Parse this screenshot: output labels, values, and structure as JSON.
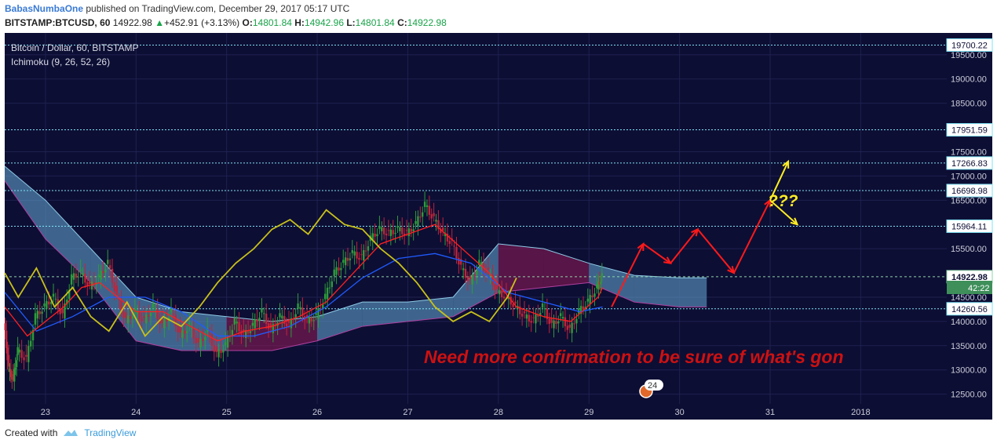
{
  "header": {
    "author": "BabasNumbaOne",
    "published": "published on TradingView.com, December 29, 2017 05:17 UTC",
    "symbol": "BITSTAMP:BTCUSD, 60",
    "last": "14922.98",
    "change_arrow": "▲",
    "change": "+452.91 (+3.13%)",
    "o_label": "O:",
    "o": "14801.84",
    "h_label": "H:",
    "h": "14942.96",
    "l_label": "L:",
    "l": "14801.84",
    "c_label": "C:",
    "c": "14922.98"
  },
  "legend": {
    "title": "Bitcoin / Dollar, 60, BITSTAMP",
    "indicator": "Ichimoku (9, 26, 52, 26)"
  },
  "annotation": {
    "text": "Need more confirmation to be sure of what's gon",
    "question": "???"
  },
  "countdown": "42:22",
  "event_count": "24",
  "footer": {
    "created": "Created with",
    "brand": "TradingView"
  },
  "colors": {
    "background": "#0d0e34",
    "grid": "#1f2150",
    "level": "#7fe3f5",
    "last_price": "#8fd3a8",
    "tenkan": "#ff2020",
    "kijun": "#1f5cff",
    "chikou": "#c8c11a",
    "cloud_bull": "#5f9fc9",
    "cloud_bear": "#8a1a55",
    "up_candle": "#2e9b3a",
    "down_candle": "#c0243a",
    "projection": "#ff1a1a",
    "projection_alt": "#ffee22",
    "annotation_text": "#cc1111"
  },
  "chart_data": {
    "type": "candlestick",
    "title": "Bitcoin / Dollar, 60, BITSTAMP",
    "x_ticks": [
      "23",
      "24",
      "25",
      "26",
      "27",
      "28",
      "29",
      "30",
      "31",
      "2018"
    ],
    "y_ticks": [
      "19500.00",
      "19000.00",
      "18500.00",
      "17500.00",
      "17000.00",
      "16500.00",
      "15500.00",
      "14500.00",
      "14000.00",
      "13500.00",
      "13000.00",
      "12500.00"
    ],
    "ylim": [
      12300,
      19950
    ],
    "levels": [
      19700.22,
      17951.59,
      17266.83,
      16698.98,
      15964.11,
      14260.56
    ],
    "level_labels": [
      "19700.22",
      "17951.59",
      "17266.83",
      "16698.98",
      "15964.11",
      "14260.56"
    ],
    "last_price": 14922.98,
    "last_price_label": "14922.98",
    "price_path": [
      [
        22.55,
        14000
      ],
      [
        22.6,
        13000
      ],
      [
        22.65,
        12800
      ],
      [
        22.7,
        13400
      ],
      [
        22.8,
        13200
      ],
      [
        22.9,
        14100
      ],
      [
        23.0,
        14300
      ],
      [
        23.1,
        14500
      ],
      [
        23.2,
        14100
      ],
      [
        23.3,
        14900
      ],
      [
        23.4,
        15000
      ],
      [
        23.5,
        14700
      ],
      [
        23.6,
        14900
      ],
      [
        23.7,
        15200
      ],
      [
        23.8,
        14500
      ],
      [
        23.9,
        14000
      ],
      [
        24.0,
        14200
      ],
      [
        24.1,
        14000
      ],
      [
        24.2,
        14300
      ],
      [
        24.3,
        13900
      ],
      [
        24.4,
        14200
      ],
      [
        24.5,
        13700
      ],
      [
        24.6,
        13900
      ],
      [
        24.7,
        13500
      ],
      [
        24.8,
        13800
      ],
      [
        24.9,
        13300
      ],
      [
        25.0,
        13500
      ],
      [
        25.1,
        14000
      ],
      [
        25.2,
        13700
      ],
      [
        25.3,
        13900
      ],
      [
        25.4,
        14200
      ],
      [
        25.5,
        13800
      ],
      [
        25.6,
        14100
      ],
      [
        25.7,
        13900
      ],
      [
        25.8,
        14300
      ],
      [
        25.9,
        14000
      ],
      [
        26.0,
        14100
      ],
      [
        26.1,
        14500
      ],
      [
        26.2,
        15000
      ],
      [
        26.3,
        15200
      ],
      [
        26.4,
        15400
      ],
      [
        26.5,
        15300
      ],
      [
        26.6,
        15700
      ],
      [
        26.7,
        15900
      ],
      [
        26.8,
        15800
      ],
      [
        26.9,
        15900
      ],
      [
        27.0,
        15800
      ],
      [
        27.1,
        16000
      ],
      [
        27.2,
        16400
      ],
      [
        27.3,
        16100
      ],
      [
        27.4,
        15800
      ],
      [
        27.5,
        15600
      ],
      [
        27.6,
        15100
      ],
      [
        27.7,
        14800
      ],
      [
        27.8,
        15200
      ],
      [
        27.9,
        15000
      ],
      [
        28.0,
        14600
      ],
      [
        28.1,
        14500
      ],
      [
        28.2,
        14300
      ],
      [
        28.3,
        14100
      ],
      [
        28.4,
        14000
      ],
      [
        28.5,
        14300
      ],
      [
        28.6,
        13900
      ],
      [
        28.7,
        14100
      ],
      [
        28.8,
        13800
      ],
      [
        28.9,
        14200
      ],
      [
        29.0,
        14400
      ],
      [
        29.1,
        14700
      ],
      [
        29.15,
        14922.98
      ]
    ],
    "tenkan": [
      [
        22.55,
        14300
      ],
      [
        22.8,
        13700
      ],
      [
        23.0,
        14000
      ],
      [
        23.2,
        14300
      ],
      [
        23.4,
        14700
      ],
      [
        23.6,
        14800
      ],
      [
        23.8,
        14500
      ],
      [
        24.0,
        14200
      ],
      [
        24.3,
        14200
      ],
      [
        24.6,
        13900
      ],
      [
        24.9,
        13600
      ],
      [
        25.2,
        13800
      ],
      [
        25.5,
        13900
      ],
      [
        25.8,
        14100
      ],
      [
        26.1,
        14400
      ],
      [
        26.4,
        15000
      ],
      [
        26.7,
        15600
      ],
      [
        27.0,
        15800
      ],
      [
        27.3,
        16000
      ],
      [
        27.6,
        15500
      ],
      [
        27.9,
        15000
      ],
      [
        28.2,
        14300
      ],
      [
        28.5,
        14100
      ],
      [
        28.8,
        14000
      ],
      [
        29.1,
        14500
      ],
      [
        29.15,
        14700
      ]
    ],
    "kijun": [
      [
        22.55,
        14600
      ],
      [
        22.9,
        13800
      ],
      [
        23.3,
        14100
      ],
      [
        23.7,
        14500
      ],
      [
        24.1,
        14500
      ],
      [
        24.5,
        14200
      ],
      [
        24.9,
        13700
      ],
      [
        25.3,
        13700
      ],
      [
        25.7,
        13900
      ],
      [
        26.1,
        14300
      ],
      [
        26.5,
        14900
      ],
      [
        26.9,
        15300
      ],
      [
        27.3,
        15400
      ],
      [
        27.7,
        15200
      ],
      [
        28.1,
        14600
      ],
      [
        28.5,
        14400
      ],
      [
        28.9,
        14200
      ],
      [
        29.15,
        14300
      ]
    ],
    "chikou": [
      [
        22.55,
        15000
      ],
      [
        22.7,
        14500
      ],
      [
        22.9,
        15100
      ],
      [
        23.1,
        14300
      ],
      [
        23.3,
        14700
      ],
      [
        23.5,
        14100
      ],
      [
        23.7,
        13800
      ],
      [
        23.9,
        14400
      ],
      [
        24.1,
        13700
      ],
      [
        24.3,
        14100
      ],
      [
        24.5,
        13900
      ],
      [
        24.7,
        14300
      ],
      [
        24.9,
        14800
      ],
      [
        25.1,
        15200
      ],
      [
        25.3,
        15500
      ],
      [
        25.5,
        15900
      ],
      [
        25.7,
        16100
      ],
      [
        25.9,
        15800
      ],
      [
        26.1,
        16300
      ],
      [
        26.3,
        16000
      ],
      [
        26.5,
        15900
      ],
      [
        26.7,
        15500
      ],
      [
        26.9,
        15200
      ],
      [
        27.1,
        14800
      ],
      [
        27.3,
        14300
      ],
      [
        27.5,
        14000
      ],
      [
        27.7,
        14200
      ],
      [
        27.9,
        14000
      ],
      [
        28.1,
        14500
      ],
      [
        28.2,
        14900
      ]
    ],
    "cloud": [
      [
        22.55,
        17200,
        16900
      ],
      [
        23.0,
        16500,
        15700
      ],
      [
        23.5,
        15500,
        14800
      ],
      [
        24.0,
        14500,
        13600
      ],
      [
        24.5,
        14200,
        13400
      ],
      [
        25.0,
        14100,
        13400
      ],
      [
        25.5,
        14000,
        13400
      ],
      [
        26.0,
        14100,
        13600
      ],
      [
        26.5,
        14400,
        13900
      ],
      [
        27.0,
        14400,
        14000
      ],
      [
        27.5,
        14500,
        14100
      ],
      [
        28.0,
        15600,
        14600
      ],
      [
        28.5,
        15500,
        14700
      ],
      [
        29.0,
        15200,
        14800
      ],
      [
        29.5,
        14950,
        14400
      ],
      [
        30.0,
        14900,
        14300
      ],
      [
        30.3,
        14900,
        14300
      ]
    ],
    "projection": [
      [
        29.25,
        14300
      ],
      [
        29.6,
        15600
      ],
      [
        29.9,
        15200
      ],
      [
        30.2,
        15900
      ],
      [
        30.6,
        15000
      ],
      [
        31.0,
        16500
      ]
    ],
    "projection_alt": [
      [
        31.0,
        16500
      ],
      [
        31.2,
        17300
      ],
      [
        31.0,
        16500
      ],
      [
        31.3,
        16000
      ]
    ]
  }
}
